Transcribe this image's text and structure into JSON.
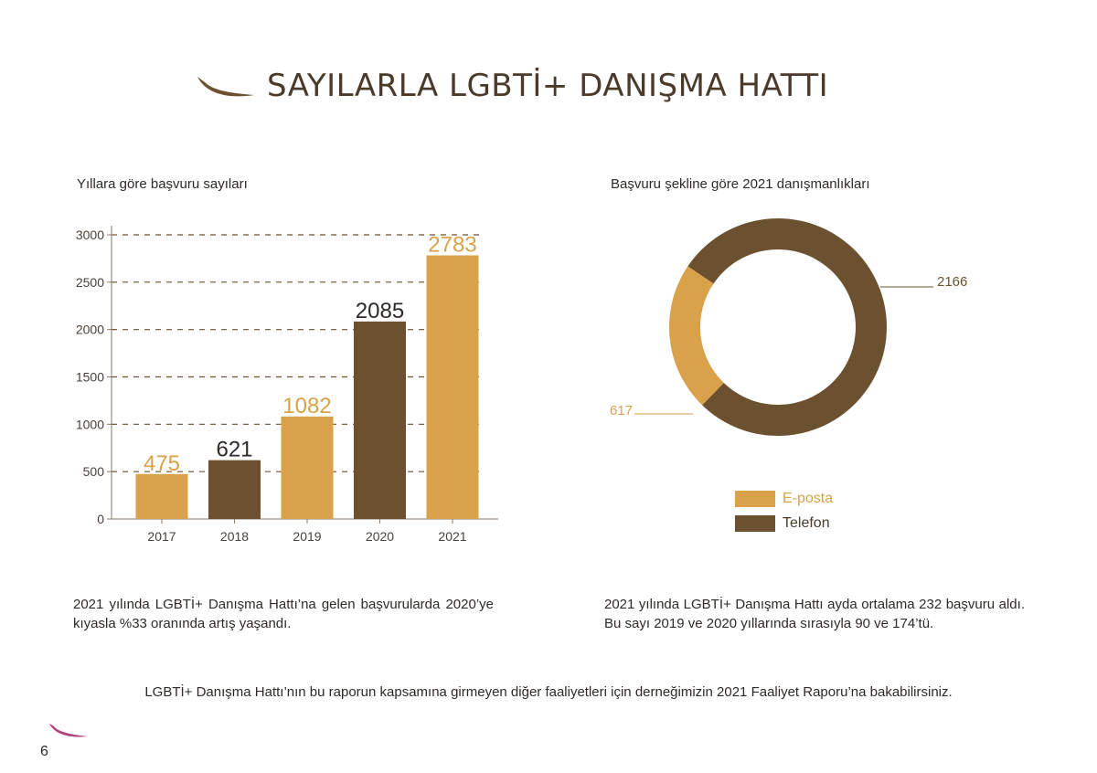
{
  "page": {
    "title": "SAYILARLA LGBTİ+ DANIŞMA HATTI",
    "page_number": "6"
  },
  "bar_chart": {
    "caption": "Yıllara göre başvuru sayıları"
  },
  "donut_chart": {
    "caption": "Başvuru şekline göre 2021 danışmanlıkları"
  },
  "colors": {
    "gold": "#d9a24a",
    "brown": "#6b5130",
    "title": "#4a3a2a",
    "accent_pink": "#b0457a"
  },
  "chart_data": [
    {
      "type": "bar",
      "title": "Yıllara göre başvuru sayıları",
      "categories": [
        "2017",
        "2018",
        "2019",
        "2020",
        "2021"
      ],
      "values": [
        475,
        621,
        1082,
        2085,
        2783
      ],
      "bar_colors": [
        "#d9a24a",
        "#6b5130",
        "#d9a24a",
        "#6b5130",
        "#d9a24a"
      ],
      "ylim": [
        0,
        3000
      ],
      "yticks": [
        0,
        500,
        1000,
        1500,
        2000,
        2500,
        3000
      ],
      "xlabel": "",
      "ylabel": "",
      "grid": "dashed horizontal"
    },
    {
      "type": "pie",
      "style": "donut",
      "title": "Başvuru şekline göre 2021 danışmanlıkları",
      "labels": [
        "E-posta",
        "Telefon"
      ],
      "values": [
        617,
        2166
      ],
      "colors": [
        "#d9a24a",
        "#6b5130"
      ],
      "legend": "bottom"
    }
  ],
  "paragraphs": {
    "left": "2021 yılında LGBTİ+ Danışma Hattı’na gelen başvurularda 2020’ye kıyasla %33 oranında artış yaşandı.",
    "right": "2021 yılında LGBTİ+ Danışma Hattı ayda ortalama 232 başvuru aldı. Bu sayı 2019 ve 2020 yıllarında sırasıyla 90 ve 174’tü.",
    "footer": "LGBTİ+ Danışma Hattı’nın bu raporun kapsamına girmeyen diğer faaliyetleri için derneğimizin 2021 Faaliyet Raporu’na bakabilirsiniz."
  }
}
